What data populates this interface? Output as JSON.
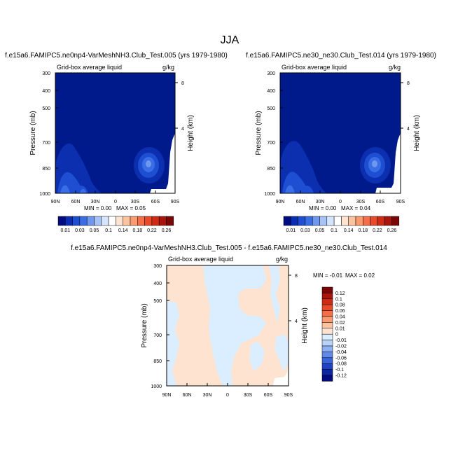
{
  "figure": {
    "title": "JJA",
    "axis_ticks": {
      "lat": [
        "90N",
        "60N",
        "30N",
        "0",
        "30S",
        "60S",
        "90S"
      ],
      "pressure": [
        "300",
        "400",
        "500",
        "700",
        "850",
        "1000"
      ],
      "height": [
        "8",
        "4"
      ]
    },
    "colors": {
      "background": "#ffffff",
      "mean_field_fill": "#001a8c",
      "diff_field_fill": "#fde3d0",
      "diff_negative_patch": "#dbeeff"
    }
  },
  "chart_data": [
    {
      "type": "heatmap",
      "case_title": "f.e15a6.FAMIPC5.ne0np4-VarMeshNH3.Club_Test.005 (yrs 1979-1980)",
      "variable_label": "Grid-box average liquid",
      "units": "g/kg",
      "xlabel": "",
      "ylabel": "Pressure (mb)",
      "y2label": "Height (km)",
      "x": [
        "90N",
        "60N",
        "30N",
        "0",
        "30S",
        "60S",
        "90S"
      ],
      "y": [
        300,
        400,
        500,
        700,
        850,
        1000
      ],
      "y_scale": "log",
      "min_text": "MIN =   0.00",
      "max_text": "MAX =   0.05",
      "min": 0.0,
      "max": 0.05,
      "colorbar": {
        "labels": [
          "0.01",
          "0.03",
          "0.05",
          "0.1",
          "0.14",
          "0.18",
          "0.22",
          "0.26"
        ],
        "colors": [
          "#000b82",
          "#0a2db4",
          "#1e4ed2",
          "#3a6ee6",
          "#6e98f0",
          "#a6c3f6",
          "#d4e4fb",
          "#ffffff",
          "#fde3d0",
          "#fcc3a1",
          "#f99a70",
          "#f46e48",
          "#e84a2a",
          "#cf2a14",
          "#a9150b",
          "#7a0606"
        ]
      }
    },
    {
      "type": "heatmap",
      "case_title": "f.e15a6.FAMIPC5.ne30_ne30.Club_Test.014 (yrs 1979-1980)",
      "variable_label": "Grid-box average liquid",
      "units": "g/kg",
      "xlabel": "",
      "ylabel": "Pressure (mb)",
      "y2label": "Height (km)",
      "x": [
        "90N",
        "60N",
        "30N",
        "0",
        "30S",
        "60S",
        "90S"
      ],
      "y": [
        300,
        400,
        500,
        700,
        850,
        1000
      ],
      "y_scale": "log",
      "min_text": "MIN =   0.00",
      "max_text": "MAX =   0.04",
      "min": 0.0,
      "max": 0.04,
      "colorbar": {
        "labels": [
          "0.01",
          "0.03",
          "0.05",
          "0.1",
          "0.14",
          "0.18",
          "0.22",
          "0.26"
        ],
        "colors": [
          "#000b82",
          "#0a2db4",
          "#1e4ed2",
          "#3a6ee6",
          "#6e98f0",
          "#a6c3f6",
          "#d4e4fb",
          "#ffffff",
          "#fde3d0",
          "#fcc3a1",
          "#f99a70",
          "#f46e48",
          "#e84a2a",
          "#cf2a14",
          "#a9150b",
          "#7a0606"
        ]
      }
    },
    {
      "type": "heatmap",
      "case_title": "f.e15a6.FAMIPC5.ne0np4-VarMeshNH3.Club_Test.005 - f.e15a6.FAMIPC5.ne30_ne30.Club_Test.014",
      "variable_label": "Grid-box average liquid",
      "units": "g/kg",
      "xlabel": "",
      "ylabel": "Pressure (mb)",
      "y2label": "Height (km)",
      "x": [
        "90N",
        "60N",
        "30N",
        "0",
        "30S",
        "60S",
        "90S"
      ],
      "y": [
        300,
        400,
        500,
        700,
        850,
        1000
      ],
      "y_scale": "log",
      "min_text": "MIN =  -0.01",
      "max_text": "MAX =   0.02",
      "min": -0.01,
      "max": 0.02,
      "colorbar": {
        "labels": [
          "0.12",
          "0.1",
          "0.08",
          "0.06",
          "0.04",
          "0.02",
          "0.01",
          "0",
          "-0.01",
          "-0.02",
          "-0.04",
          "-0.06",
          "-0.08",
          "-0.1",
          "-0.12"
        ],
        "colors": [
          "#7a0606",
          "#a9150b",
          "#cf2a14",
          "#e84a2a",
          "#f46e48",
          "#f99a70",
          "#fcc3a1",
          "#fde3d0",
          "#dbeeff",
          "#b9d3f8",
          "#8cb0f2",
          "#5f8aea",
          "#3a64dc",
          "#1f42c4",
          "#0b26a4",
          "#000b82"
        ]
      }
    }
  ]
}
